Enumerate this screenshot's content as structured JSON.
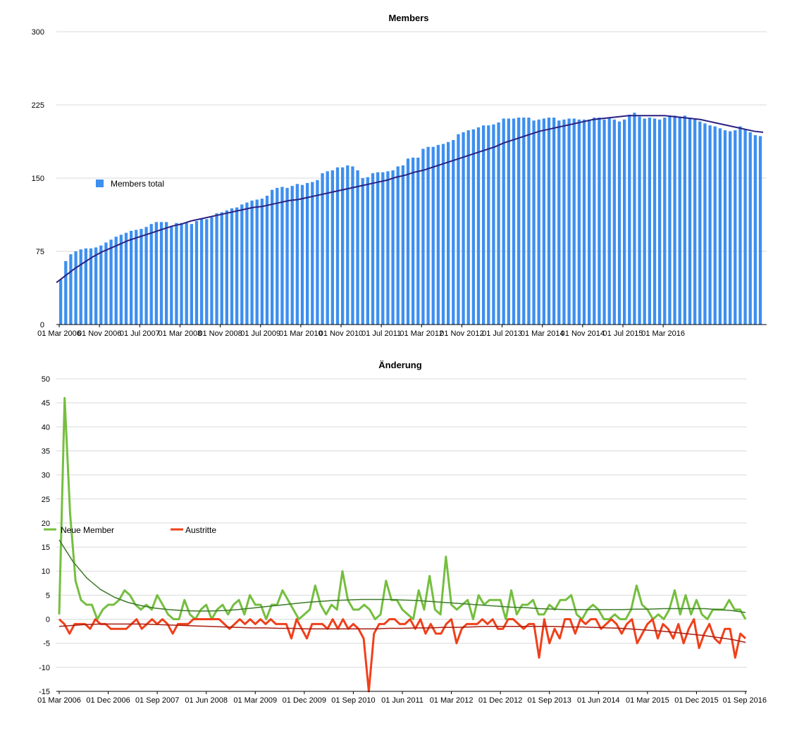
{
  "chart_data": [
    {
      "type": "bar",
      "title": "Members",
      "xlabel": "",
      "ylabel": "",
      "ylim": [
        0,
        300
      ],
      "yticks": [
        0,
        75,
        150,
        225,
        300
      ],
      "grid": true,
      "legend_position": "left",
      "x_tick_labels": [
        "01 Mar 2006",
        "01 Nov 2006",
        "01 Jul 2007",
        "01 Mar 2008",
        "01 Nov 2008",
        "01 Jul 2009",
        "01 Mar 2010",
        "01 Nov 2010",
        "01 Jul 2011",
        "01 Mar 2012",
        "01 Nov 2012",
        "01 Jul 2013",
        "01 Mar 2014",
        "01 Nov 2014",
        "01 Jul 2015",
        "01 Mar 2016"
      ],
      "x_start": "2006-03",
      "series": [
        {
          "name": "Members total",
          "color": "#3d8ff0",
          "values": [
            46,
            65,
            72,
            75,
            77,
            78,
            78,
            79,
            81,
            84,
            87,
            90,
            92,
            94,
            96,
            97,
            98,
            100,
            103,
            105,
            105,
            105,
            101,
            104,
            104,
            104,
            103,
            106,
            108,
            108,
            110,
            114,
            115,
            117,
            119,
            120,
            123,
            125,
            127,
            128,
            129,
            132,
            138,
            140,
            141,
            140,
            142,
            144,
            143,
            145,
            146,
            148,
            155,
            157,
            158,
            161,
            161,
            163,
            162,
            158,
            150,
            151,
            155,
            156,
            156,
            157,
            158,
            162,
            163,
            170,
            171,
            171,
            180,
            182,
            182,
            184,
            185,
            187,
            189,
            195,
            197,
            199,
            200,
            202,
            204,
            204,
            205,
            207,
            211,
            211,
            211,
            212,
            212,
            212,
            209,
            210,
            211,
            212,
            212,
            209,
            210,
            211,
            211,
            210,
            210,
            210,
            212,
            212,
            210,
            212,
            210,
            208,
            210,
            215,
            217,
            213,
            211,
            212,
            211,
            210,
            212,
            214,
            214,
            213,
            214,
            212,
            210,
            208,
            206,
            204,
            203,
            201,
            199,
            198,
            199,
            203,
            200,
            197,
            194,
            193
          ]
        },
        {
          "name": "",
          "type": "trendline",
          "color": "#2b2180",
          "values": [
            43,
            50,
            57,
            63,
            69,
            74,
            78,
            82,
            86,
            89,
            92,
            95,
            98,
            101,
            103,
            106,
            108,
            110,
            112,
            114,
            116,
            118,
            120,
            121,
            123,
            125,
            127,
            128,
            130,
            132,
            134,
            136,
            138,
            140,
            142,
            144,
            146,
            148,
            151,
            153,
            156,
            158,
            161,
            164,
            167,
            170,
            173,
            176,
            179,
            182,
            186,
            189,
            192,
            195,
            198,
            200,
            202,
            204,
            206,
            208,
            210,
            211,
            212,
            213,
            214,
            214,
            214,
            214,
            214,
            213,
            212,
            211,
            210,
            208,
            206,
            204,
            202,
            200,
            198,
            197
          ]
        }
      ]
    },
    {
      "type": "line",
      "title": "Änderung",
      "xlabel": "",
      "ylabel": "",
      "ylim": [
        -15,
        50
      ],
      "yticks": [
        -15,
        -10,
        -5,
        0,
        5,
        10,
        15,
        20,
        25,
        30,
        35,
        40,
        45,
        50
      ],
      "grid": true,
      "legend_position": "top-left",
      "x_tick_labels": [
        "01 Mar 2006",
        "01 Dec 2006",
        "01 Sep 2007",
        "01 Jun 2008",
        "01 Mar 2009",
        "01 Dec 2009",
        "01 Sep 2010",
        "01 Jun 2011",
        "01 Mar 2012",
        "01 Dec 2012",
        "01 Sep 2013",
        "01 Jun 2014",
        "01 Mar 2015",
        "01 Dec 2015",
        "01 Sep 2016"
      ],
      "x_start": "2006-03",
      "series": [
        {
          "name": "Neue Member",
          "color": "#75be3f",
          "values": [
            1,
            46,
            22,
            8,
            4,
            3,
            3,
            0,
            2,
            3,
            3,
            4,
            6,
            5,
            3,
            2,
            3,
            2,
            5,
            3,
            1,
            0,
            0,
            4,
            1,
            0,
            2,
            3,
            0,
            2,
            3,
            1,
            3,
            4,
            1,
            5,
            3,
            3,
            0,
            3,
            3,
            6,
            4,
            2,
            0,
            1,
            2,
            7,
            3,
            1,
            3,
            2,
            10,
            4,
            2,
            2,
            3,
            2,
            0,
            1,
            8,
            4,
            4,
            2,
            1,
            0,
            6,
            2,
            9,
            2,
            1,
            13,
            3,
            2,
            3,
            4,
            0,
            5,
            3,
            4,
            4,
            4,
            0,
            6,
            1,
            3,
            3,
            4,
            1,
            1,
            3,
            2,
            4,
            4,
            5,
            1,
            0,
            2,
            3,
            2,
            0,
            0,
            1,
            0,
            0,
            2,
            7,
            3,
            2,
            0,
            1,
            0,
            2,
            6,
            1,
            5,
            1,
            4,
            1,
            0,
            2,
            2,
            2,
            4,
            2,
            2,
            0
          ]
        },
        {
          "name": "Austritte",
          "color": "#f0401a",
          "values": [
            0,
            -1,
            -3,
            -1,
            -1,
            -1,
            -2,
            0,
            -1,
            -1,
            -2,
            -2,
            -2,
            -2,
            -1,
            0,
            -2,
            -1,
            0,
            -1,
            0,
            -1,
            -3,
            -1,
            -1,
            -1,
            0,
            0,
            0,
            0,
            0,
            0,
            -1,
            -2,
            -1,
            0,
            -1,
            0,
            -1,
            0,
            -1,
            0,
            -1,
            -1,
            -1,
            -4,
            0,
            -2,
            -4,
            -1,
            -1,
            -1,
            -2,
            0,
            -2,
            0,
            -2,
            -1,
            -2,
            -4,
            -15,
            -3,
            -1,
            -1,
            0,
            0,
            -1,
            -1,
            0,
            -2,
            0,
            -3,
            -1,
            -3,
            -3,
            -1,
            0,
            -5,
            -2,
            -1,
            -1,
            -1,
            0,
            -1,
            0,
            -2,
            -2,
            0,
            0,
            -1,
            -2,
            -1,
            -1,
            -8,
            0,
            -5,
            -2,
            -4,
            0,
            0,
            -3,
            0,
            -1,
            0,
            0,
            -2,
            -1,
            0,
            -1,
            -3,
            -1,
            0,
            -5,
            -3,
            -1,
            0,
            -4,
            -1,
            -2,
            -4,
            -1,
            -5,
            -2,
            0,
            -6,
            -3,
            -1,
            -4,
            -5,
            -2,
            -2,
            -8,
            -3,
            -4
          ]
        },
        {
          "name": "",
          "type": "trendline",
          "color": "#3d7a2a",
          "values": [
            16.5,
            12,
            8.6,
            6.2,
            4.6,
            3.5,
            2.8,
            2.3,
            2,
            1.8,
            1.7,
            1.7,
            1.8,
            2,
            2.3,
            2.6,
            2.9,
            3.2,
            3.5,
            3.7,
            3.9,
            4,
            4.1,
            4.1,
            4.1,
            4,
            3.9,
            3.7,
            3.5,
            3.3,
            3.1,
            2.9,
            2.7,
            2.5,
            2.4,
            2.2,
            2.1,
            2,
            2,
            2,
            2,
            2,
            2.1,
            2.1,
            2.2,
            2.2,
            2.2,
            2.2,
            2,
            1.8,
            1.4
          ]
        },
        {
          "name": "",
          "type": "trendline",
          "color": "#a81e10",
          "values": [
            -1.5,
            -1.3,
            -1.1,
            -1,
            -1,
            -1,
            -1,
            -1.1,
            -1.2,
            -1.3,
            -1.4,
            -1.5,
            -1.6,
            -1.7,
            -1.8,
            -1.8,
            -1.9,
            -1.9,
            -2,
            -2,
            -2,
            -2,
            -2,
            -2,
            -1.9,
            -1.9,
            -1.8,
            -1.8,
            -1.7,
            -1.7,
            -1.6,
            -1.5,
            -1.5,
            -1.5,
            -1.5,
            -1.5,
            -1.5,
            -1.6,
            -1.6,
            -1.7,
            -1.8,
            -1.9,
            -2.1,
            -2.3,
            -2.5,
            -2.8,
            -3.1,
            -3.4,
            -3.8,
            -4.2,
            -4.8
          ]
        }
      ]
    }
  ]
}
